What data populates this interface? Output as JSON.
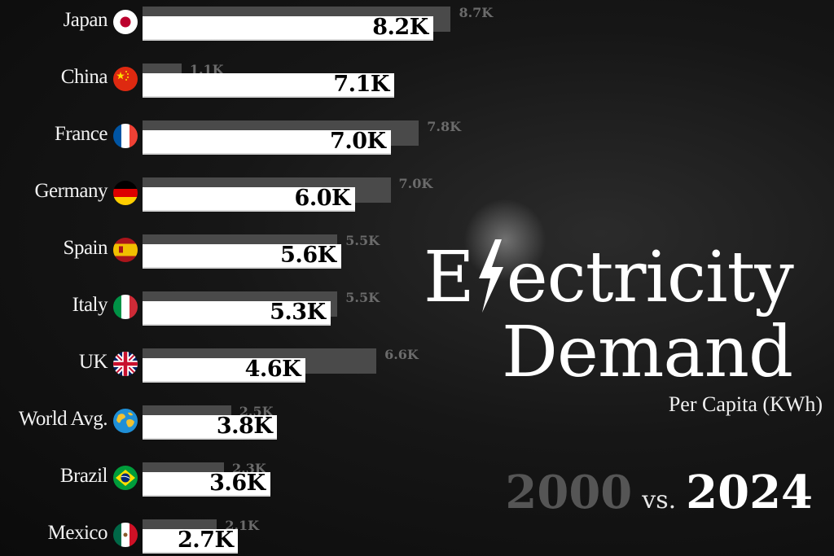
{
  "title": {
    "line1": "Electricity",
    "line2": "Demand",
    "subtitle": "Per Capita (KWh)"
  },
  "years": {
    "old": "2000",
    "vs": "vs.",
    "new": "2024"
  },
  "colors": {
    "bar_2024": "#ffffff",
    "bar_2000": "#4a4a4a",
    "background": "#111111"
  },
  "chart_data": {
    "type": "bar",
    "orientation": "horizontal",
    "categories": [
      "Japan",
      "China",
      "France",
      "Germany",
      "Spain",
      "Italy",
      "UK",
      "World Avg.",
      "Brazil",
      "Mexico"
    ],
    "series": [
      {
        "name": "2000",
        "values": [
          8.7,
          1.1,
          7.8,
          7.0,
          5.5,
          5.5,
          6.6,
          2.5,
          2.3,
          2.1
        ],
        "labels": [
          "8.7K",
          "1.1K",
          "7.8K",
          "7.0K",
          "5.5K",
          "5.5K",
          "6.6K",
          "2.5K",
          "2.3K",
          "2.1K"
        ]
      },
      {
        "name": "2024",
        "values": [
          8.2,
          7.1,
          7.0,
          6.0,
          5.6,
          5.3,
          4.6,
          3.8,
          3.6,
          2.7
        ],
        "labels": [
          "8.2K",
          "7.1K",
          "7.0K",
          "6.0K",
          "5.6K",
          "5.3K",
          "4.6K",
          "3.8K",
          "3.6K",
          "2.7K"
        ]
      }
    ],
    "flags": [
      "japan-flag-icon",
      "china-flag-icon",
      "france-flag-icon",
      "germany-flag-icon",
      "spain-flag-icon",
      "italy-flag-icon",
      "uk-flag-icon",
      "globe-icon",
      "brazil-flag-icon",
      "mexico-flag-icon"
    ],
    "unit": "KWh"
  }
}
